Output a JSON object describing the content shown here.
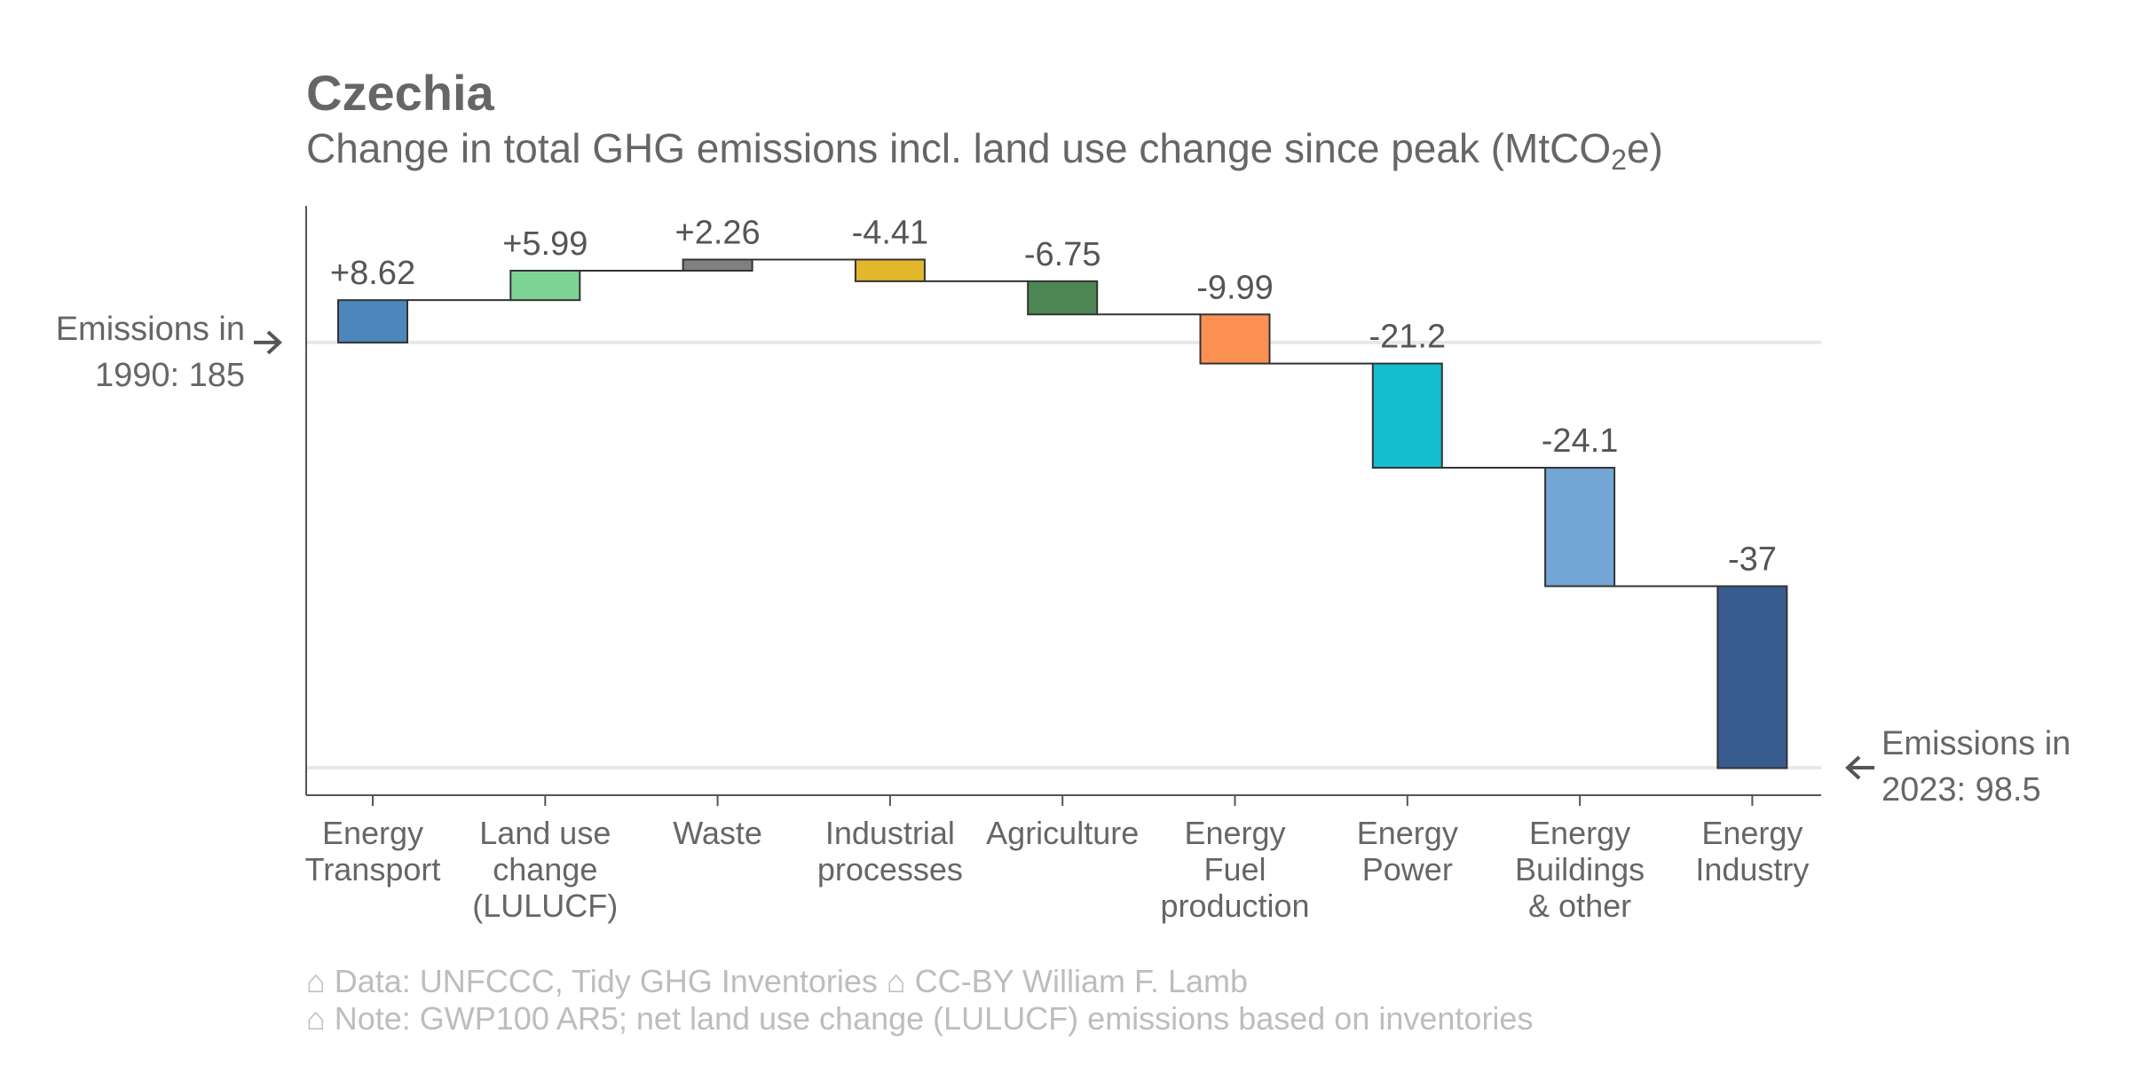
{
  "title": "Czechia",
  "subtitle_pre": "Change in total GHG emissions incl. land use change since peak (MtCO",
  "subtitle_sub": "2",
  "subtitle_post": "e)",
  "start_label": {
    "line1": "Emissions in",
    "line2": "1990: 185"
  },
  "end_label": {
    "line1": "Emissions in",
    "line2": "2023: 98.5"
  },
  "notes": [
    "⌂ Data: UNFCCC, Tidy GHG Inventories   ⌂ CC-BY William F. Lamb",
    "⌂ Note: GWP100 AR5; net land use change (LULUCF) emissions based on inventories"
  ],
  "chart_data": {
    "type": "waterfall",
    "start_value": 185,
    "end_value": 98.5,
    "ylim": [
      92,
      198
    ],
    "reference_lines": [
      185,
      98.5
    ],
    "categories": [
      [
        "Energy",
        "Transport"
      ],
      [
        "Land use",
        "change",
        "(LULUCF)"
      ],
      [
        "Waste"
      ],
      [
        "Industrial",
        "processes"
      ],
      [
        "Agriculture"
      ],
      [
        "Energy",
        "Fuel",
        "production"
      ],
      [
        "Energy",
        "Power"
      ],
      [
        "Energy",
        "Buildings",
        "& other"
      ],
      [
        "Energy",
        "Industry"
      ]
    ],
    "values": [
      8.62,
      5.99,
      2.26,
      -4.41,
      -6.75,
      -9.99,
      -21.2,
      -24.1,
      -37
    ],
    "labels": [
      "+8.62",
      "+5.99",
      "+2.26",
      "-4.41",
      "-6.75",
      "-9.99",
      "-21.2",
      "-24.1",
      "-37"
    ],
    "colors": [
      "#4d86bb",
      "#7dd494",
      "#808080",
      "#e3b72c",
      "#4d8652",
      "#fd9153",
      "#16bdcf",
      "#74a6d5",
      "#395c90"
    ]
  }
}
